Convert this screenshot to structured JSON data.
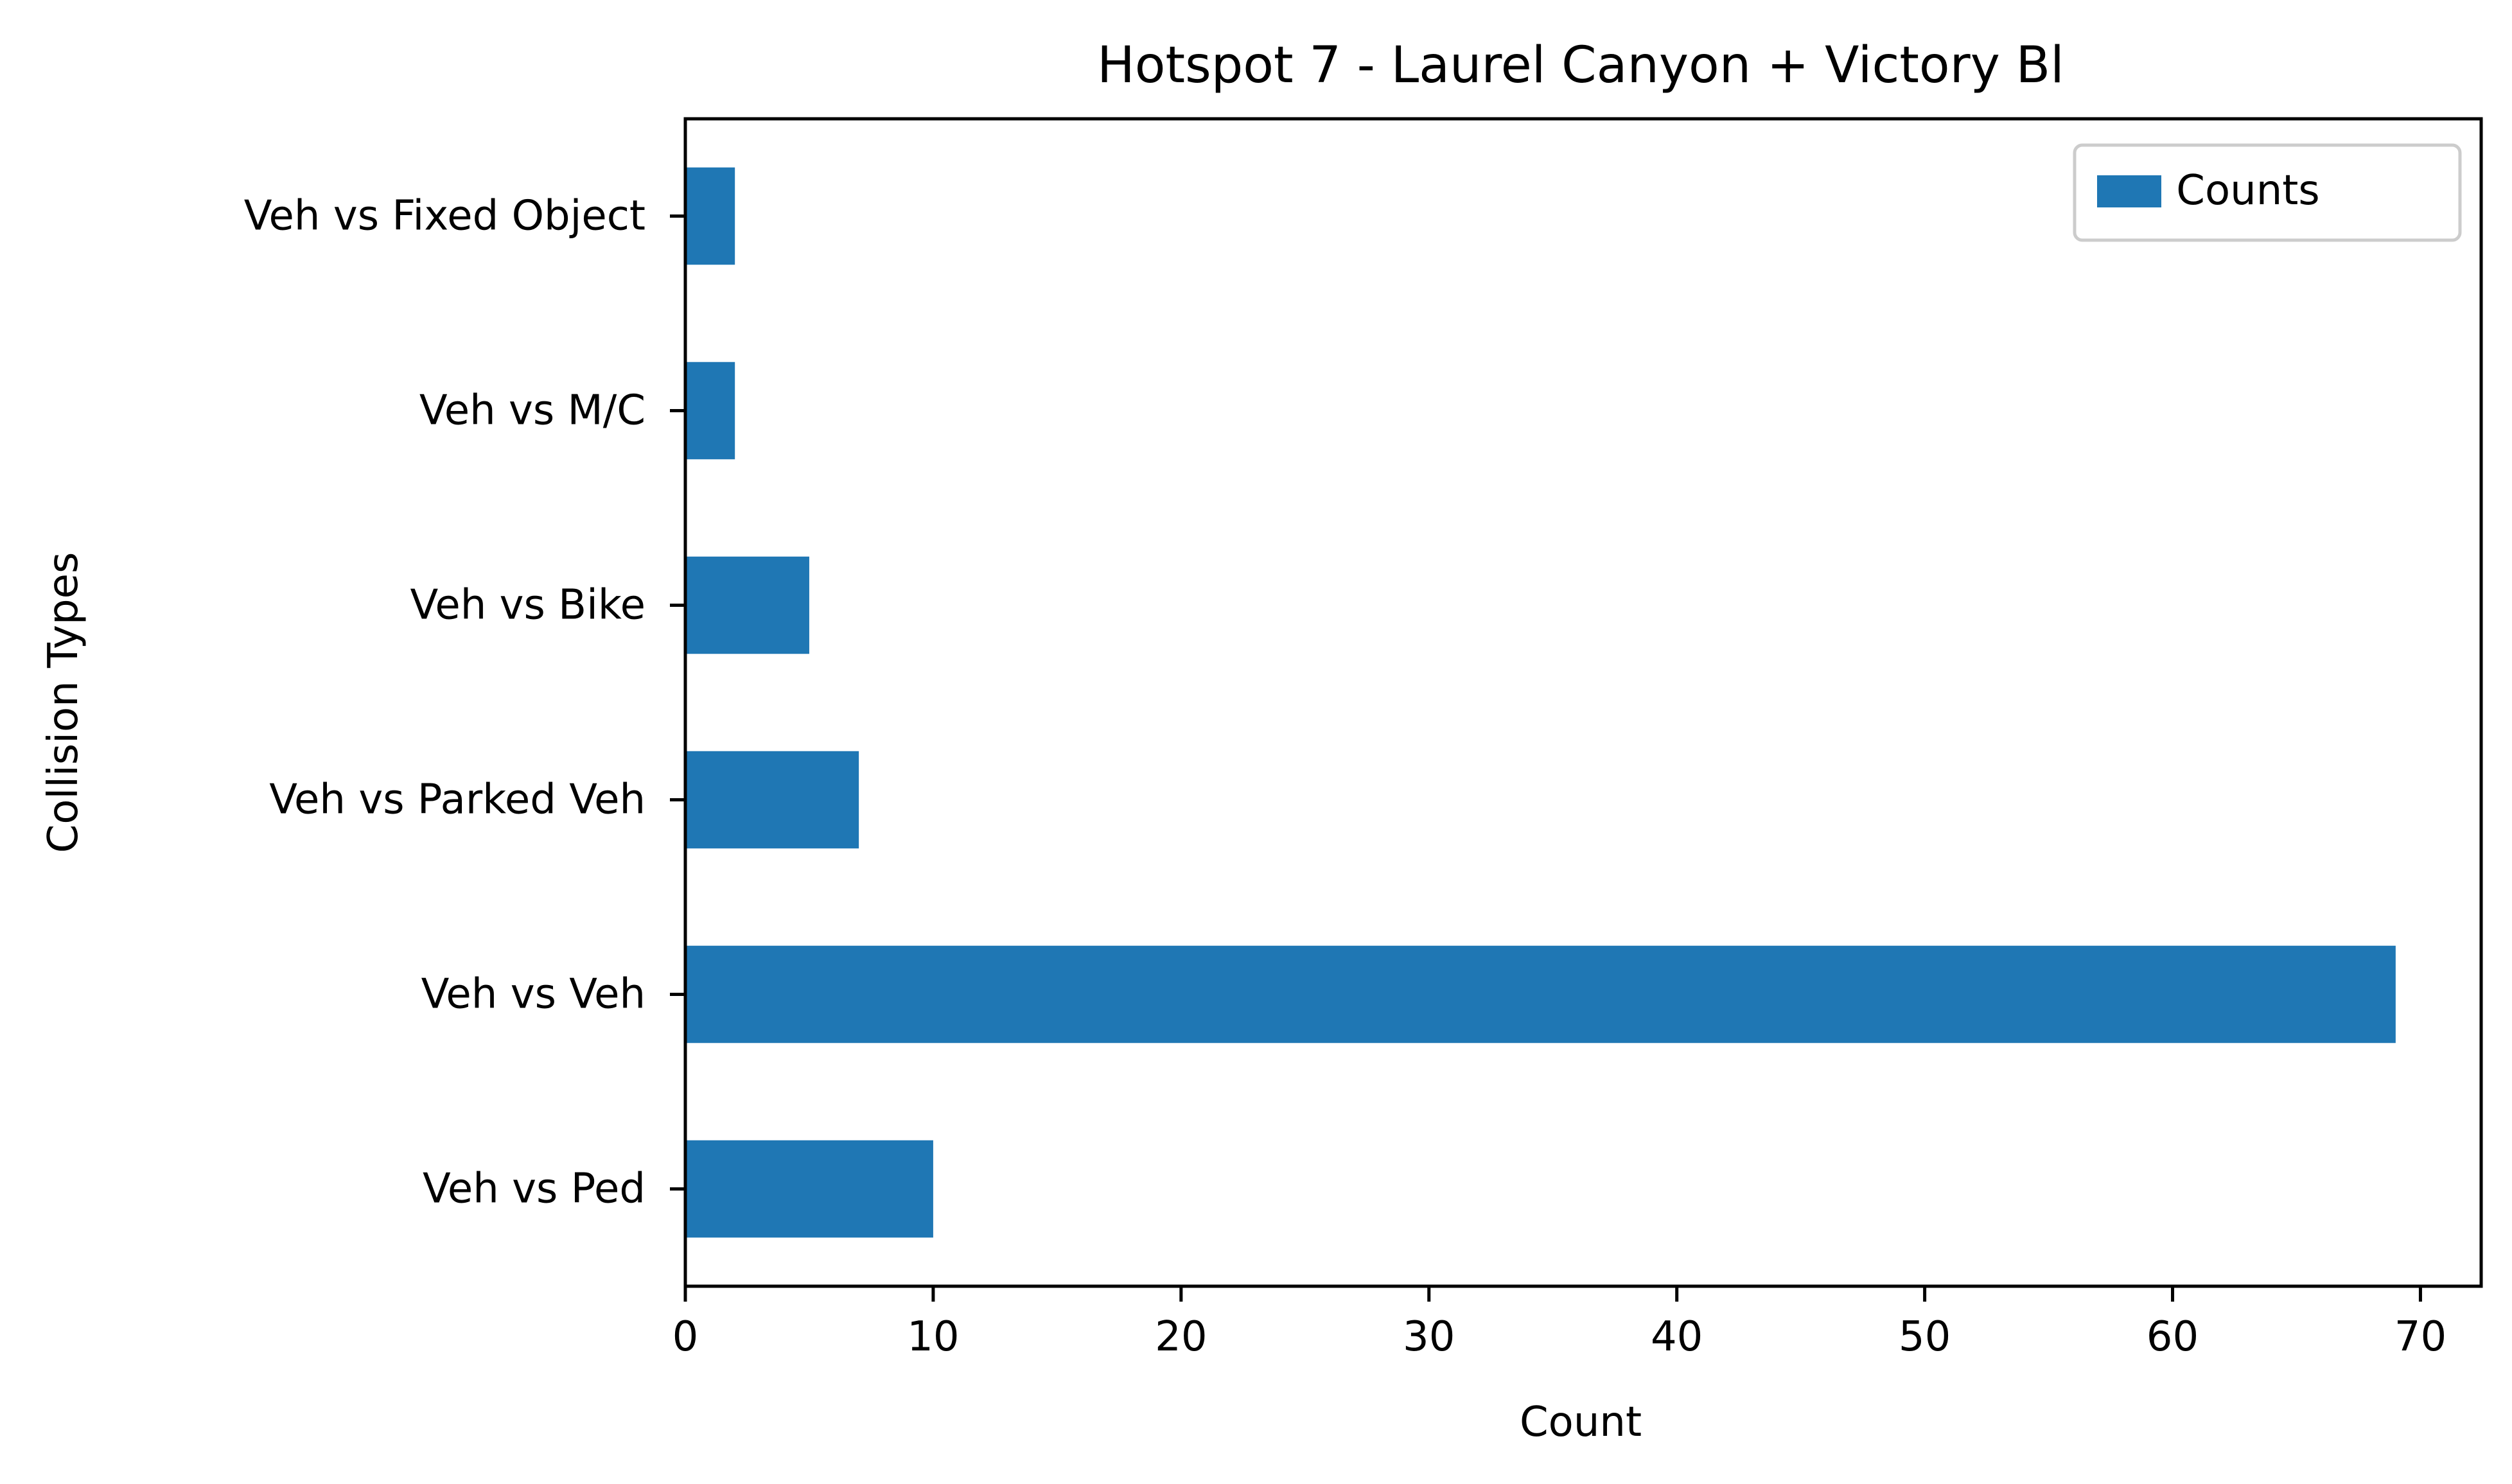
{
  "chart_data": {
    "type": "bar",
    "orientation": "horizontal",
    "title": "Hotspot 7 - Laurel Canyon + Victory Bl",
    "xlabel": "Count",
    "ylabel": "Collision Types",
    "categories": [
      "Veh vs Ped",
      "Veh vs Veh",
      "Veh vs Parked Veh",
      "Veh vs Bike",
      "Veh vs M/C",
      "Veh vs Fixed Object"
    ],
    "series": [
      {
        "name": "Counts",
        "values": [
          10,
          69,
          7,
          5,
          2,
          2
        ],
        "color": "#1f77b4"
      }
    ],
    "xlim": [
      0,
      72.45
    ],
    "xticks": [
      0,
      10,
      20,
      30,
      40,
      50,
      60,
      70
    ],
    "grid": false,
    "legend": {
      "position": "top-right",
      "entries": [
        "Counts"
      ]
    }
  }
}
